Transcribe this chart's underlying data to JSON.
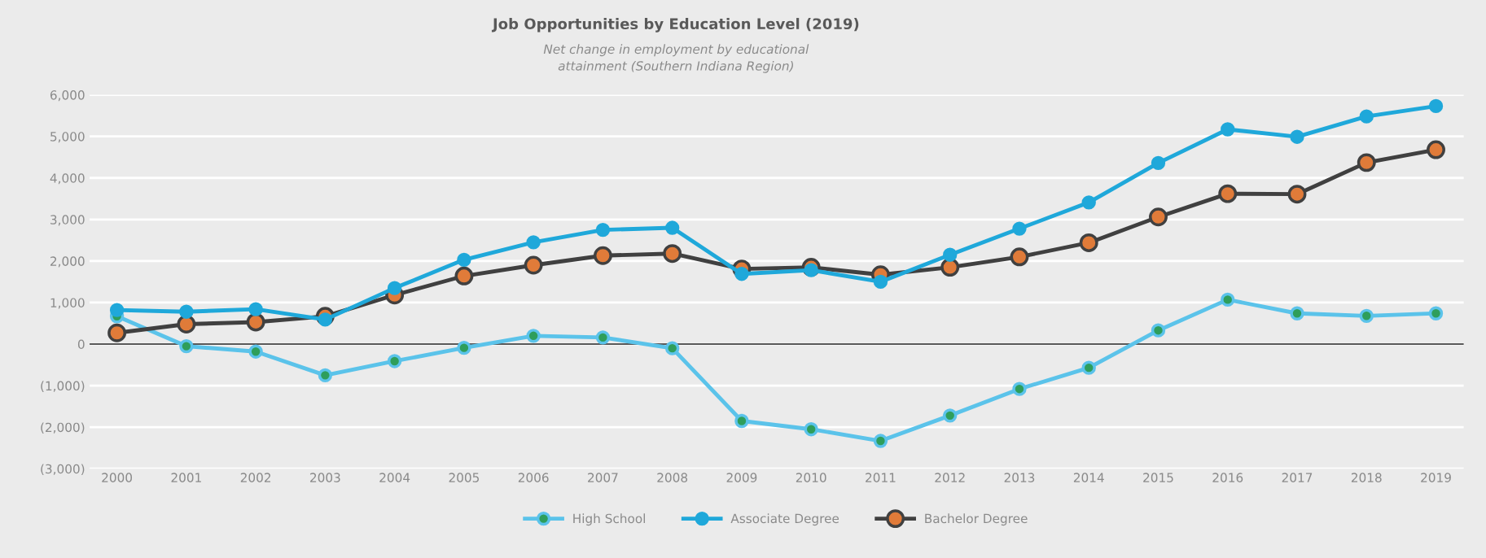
{
  "chart_data": {
    "type": "line",
    "title": "Job Opportunities by Education Level (2019)",
    "subtitle": "Net change in employment by educational\nattainment (Southern Indiana Region)",
    "categories": [
      "2000",
      "2001",
      "2002",
      "2003",
      "2004",
      "2005",
      "2006",
      "2007",
      "2008",
      "2009",
      "2010",
      "2011",
      "2012",
      "2013",
      "2014",
      "2015",
      "2016",
      "2017",
      "2018",
      "2019"
    ],
    "series": [
      {
        "name": "High School",
        "color": "#5bc3ea",
        "values": [
          670,
          -50,
          -180,
          -750,
          -410,
          -90,
          200,
          160,
          -100,
          -1850,
          -2050,
          -2330,
          -1720,
          -1080,
          -570,
          330,
          1070,
          740,
          680,
          740
        ]
      },
      {
        "name": "Associate Degree",
        "color": "#1fa8da",
        "values": [
          820,
          780,
          840,
          590,
          1350,
          2030,
          2450,
          2750,
          2800,
          1690,
          1780,
          1500,
          2150,
          2780,
          3410,
          4360,
          5170,
          4990,
          5480,
          5730
        ]
      },
      {
        "name": "Bachelor Degree",
        "color": "#404040",
        "values": [
          270,
          480,
          530,
          670,
          1180,
          1640,
          1900,
          2130,
          2180,
          1810,
          1850,
          1670,
          1850,
          2100,
          2440,
          3060,
          3620,
          3610,
          4370,
          4680
        ]
      }
    ],
    "ylim": [
      -3000,
      6000
    ],
    "yticks": [
      {
        "value": -3000,
        "label": "(3,000)"
      },
      {
        "value": -2000,
        "label": "(2,000)"
      },
      {
        "value": -1000,
        "label": "(1,000)"
      },
      0,
      {
        "value": 1000,
        "label": "1,000"
      },
      {
        "value": 2000,
        "label": "2,000"
      },
      {
        "value": 3000,
        "label": "3,000"
      },
      {
        "value": 4000,
        "label": "4,000"
      },
      {
        "value": 5000,
        "label": "5,000"
      },
      {
        "value": 6000,
        "label": "6,000"
      }
    ],
    "ref_lines": [
      {
        "axis": "y",
        "value": 0,
        "color": "#595959"
      }
    ],
    "grid": "y",
    "legend": "bottom",
    "marker": "circle",
    "line_style": "solid"
  }
}
